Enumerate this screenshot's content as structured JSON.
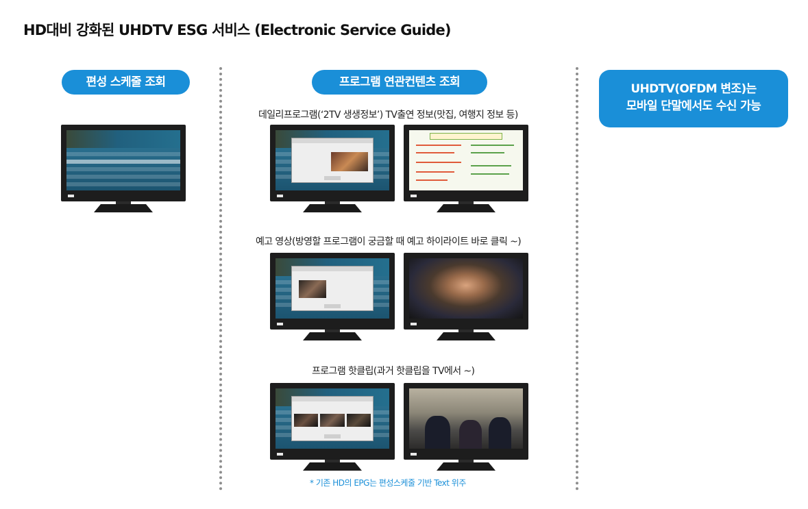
{
  "title": "HD대비 강화된 UHDTV ESG 서비스 (Electronic Service Guide)",
  "left_column": {
    "badge": "편성 스케줄 조회"
  },
  "middle_column": {
    "badge": "프로그램 연관컨텐츠 조회",
    "sections": [
      {
        "caption": "데일리프로그램(‘2TV 생생정보’) TV출연 정보(맛집, 여행지 정보 등)"
      },
      {
        "caption": "예고 영상(방영할 프로그램이 궁금할 때 예고 하이라이트 바로 클릭 ~)"
      },
      {
        "caption": "프로그램 핫클립(과거 핫클립을 TV에서 ~)"
      }
    ],
    "footnote": "* 기존 HD의 EPG는 편성스케줄 기반 Text 위주"
  },
  "right_column": {
    "badge_line1": "UHDTV(OFDM 변조)는",
    "badge_line2": "모바일 단말에서도 수신 가능"
  },
  "colors": {
    "accent": "#1a8fd8",
    "divider": "#8e8e8e",
    "tv_bezel": "#1d1d1d"
  }
}
